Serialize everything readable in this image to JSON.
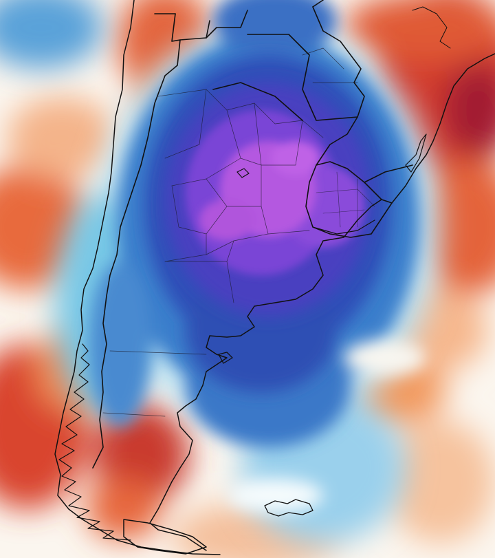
{
  "map": {
    "kind": "temperature-anomaly-map",
    "region": "southern-south-america",
    "palette": {
      "deep_red": "#a02030",
      "red": "#d0392b",
      "orange_red": "#e8643a",
      "orange": "#f2995a",
      "peach": "#f8c9a0",
      "white": "#fbfbf8",
      "pale_blue": "#bfe3f2",
      "cyan": "#78c8e6",
      "blue": "#3b7fcc",
      "royal_blue": "#2d4fb8",
      "indigo": "#4a3fc0",
      "violet": "#7a45d6",
      "magenta": "#b458e0",
      "border": "#111111"
    },
    "layers": [
      "anomaly-field",
      "coastline",
      "country-borders",
      "province-borders"
    ]
  }
}
